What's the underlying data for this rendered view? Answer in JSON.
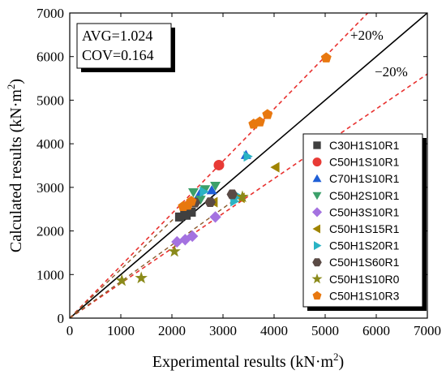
{
  "chart_data": {
    "type": "scatter",
    "xlabel": "Experimental results (kN·m",
    "xlabel_sup": "2",
    "xlabel_end": ")",
    "ylabel": "Calculated results (kN·m",
    "ylabel_sup": "2",
    "ylabel_end": ")",
    "xlim": [
      0,
      7000
    ],
    "ylim": [
      0,
      7000
    ],
    "xticks": [
      0,
      1000,
      2000,
      3000,
      4000,
      5000,
      6000,
      7000
    ],
    "yticks": [
      0,
      1000,
      2000,
      3000,
      4000,
      5000,
      6000,
      7000
    ],
    "stats": {
      "avg": "AVG=1.024",
      "cov": "COV=0.164"
    },
    "bands": {
      "upper_label": "+20%",
      "lower_label": "−20%",
      "upper_factor": 1.2,
      "lower_factor": 0.8
    },
    "reference_lines": [
      {
        "kind": "equality",
        "slope": 1.0,
        "style": "solid",
        "color": "#000000"
      },
      {
        "kind": "upper",
        "slope": 1.2,
        "style": "dashed",
        "color": "#e8312f"
      },
      {
        "kind": "lower",
        "slope": 0.8,
        "style": "dashed",
        "color": "#e8312f"
      }
    ],
    "trend_lines": [
      {
        "series": "C50H1S10R3",
        "slope": 1.12,
        "x_end": 2400,
        "style": "dashed",
        "color": "#8a5a2b"
      },
      {
        "series": "C50H1S10R0",
        "slope": 0.84,
        "x_end": 3400,
        "style": "dashed",
        "color": "#8a5a2b"
      }
    ],
    "series": [
      {
        "name": "C30H1S10R1",
        "marker": "square",
        "color": "#404040",
        "points": [
          [
            2150,
            2320
          ],
          [
            2280,
            2360
          ],
          [
            2380,
            2430
          ],
          [
            2250,
            2480
          ]
        ]
      },
      {
        "name": "C50H1S10R1",
        "marker": "circle",
        "color": "#e83a35",
        "points": [
          [
            2920,
            3510
          ]
        ]
      },
      {
        "name": "C70H1S10R1",
        "marker": "triangle-up",
        "color": "#1f5fd6",
        "points": [
          [
            3450,
            3740
          ],
          [
            2540,
            2840
          ],
          [
            2780,
            2930
          ]
        ]
      },
      {
        "name": "C50H2S10R1",
        "marker": "triangle-down",
        "color": "#3ca06a",
        "points": [
          [
            2650,
            2960
          ],
          [
            2850,
            3040
          ],
          [
            2420,
            2890
          ],
          [
            2560,
            2720
          ]
        ]
      },
      {
        "name": "C50H3S10R1",
        "marker": "diamond",
        "color": "#a472e0",
        "points": [
          [
            2100,
            1750
          ],
          [
            2260,
            1800
          ],
          [
            2400,
            1880
          ],
          [
            2850,
            2320
          ]
        ]
      },
      {
        "name": "C50H1S15R1",
        "marker": "triangle-left",
        "color": "#a08400",
        "points": [
          [
            4030,
            3460
          ],
          [
            3350,
            2760
          ],
          [
            2820,
            2660
          ]
        ]
      },
      {
        "name": "C50H1S20R1",
        "marker": "triangle-right",
        "color": "#2ab3c4",
        "points": [
          [
            3480,
            3710
          ],
          [
            3290,
            2800
          ],
          [
            3220,
            2680
          ],
          [
            2620,
            2900
          ]
        ]
      },
      {
        "name": "C50H1S60R1",
        "marker": "hexagon",
        "color": "#5a4a45",
        "points": [
          [
            3180,
            2840
          ],
          [
            2750,
            2660
          ],
          [
            2450,
            2650
          ]
        ]
      },
      {
        "name": "C50H1S10R0",
        "marker": "star",
        "color": "#8a8a1a",
        "points": [
          [
            1020,
            860
          ],
          [
            1400,
            920
          ],
          [
            2050,
            1530
          ],
          [
            3380,
            2780
          ]
        ]
      },
      {
        "name": "C50H1S10R3",
        "marker": "pentagon",
        "color": "#e8780f",
        "points": [
          [
            5020,
            5970
          ],
          [
            3600,
            4450
          ],
          [
            3720,
            4500
          ],
          [
            3870,
            4670
          ],
          [
            2220,
            2560
          ],
          [
            2380,
            2680
          ],
          [
            2310,
            2590
          ]
        ]
      }
    ],
    "legend_position": "bottom-right",
    "grid": false
  }
}
